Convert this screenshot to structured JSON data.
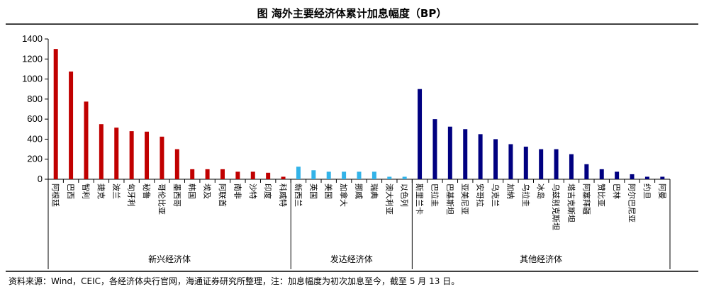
{
  "title": "图  海外主要经济体累计加息幅度（BP）",
  "footer": "资料来源：Wind，CEIC，各经济体央行官网，海通证券研究所整理，注：加息幅度为初次加息至今，截至 5 月 13 日。",
  "colors": {
    "emerging": "#C00000",
    "developed": "#33B3E8",
    "other": "#000080"
  },
  "chart_data": {
    "type": "bar",
    "title": "图  海外主要经济体累计加息幅度（BP）",
    "xlabel": "",
    "ylabel": "",
    "ylim": [
      0,
      1400
    ],
    "yticks": [
      0,
      200,
      400,
      600,
      800,
      1000,
      1200,
      1400
    ],
    "grid": false,
    "groups": [
      {
        "name": "新兴经济体",
        "color": "#C00000",
        "categories": [
          "阿根廷",
          "巴西",
          "智利",
          "捷克",
          "波兰",
          "匈牙利",
          "秘鲁",
          "哥伦比亚",
          "墨西哥",
          "韩国",
          "埃及",
          "阿联酋",
          "南非",
          "沙特",
          "印度",
          "科威特"
        ],
        "values": [
          1300,
          1075,
          775,
          550,
          515,
          480,
          475,
          425,
          300,
          100,
          100,
          100,
          75,
          75,
          65,
          25
        ]
      },
      {
        "name": "发达经济体",
        "color": "#33B3E8",
        "categories": [
          "新西兰",
          "英国",
          "美国",
          "加拿大",
          "挪威",
          "瑞典",
          "澳大利亚",
          "以色列"
        ],
        "values": [
          125,
          90,
          75,
          75,
          75,
          75,
          25,
          25
        ]
      },
      {
        "name": "其他经济体",
        "color": "#000080",
        "categories": [
          "斯里兰卡",
          "巴拉圭",
          "巴基斯坦",
          "亚美尼亚",
          "安哥拉",
          "乌克兰",
          "加纳",
          "乌拉圭",
          "冰岛",
          "乌兹别克斯坦",
          "塔吉克斯坦",
          "阿塞拜疆",
          "赞比亚",
          "巴林",
          "阿尔巴尼亚",
          "约旦",
          "阿曼"
        ],
        "values": [
          900,
          600,
          525,
          500,
          450,
          400,
          350,
          325,
          300,
          300,
          250,
          150,
          100,
          75,
          50,
          25,
          25
        ]
      }
    ]
  }
}
